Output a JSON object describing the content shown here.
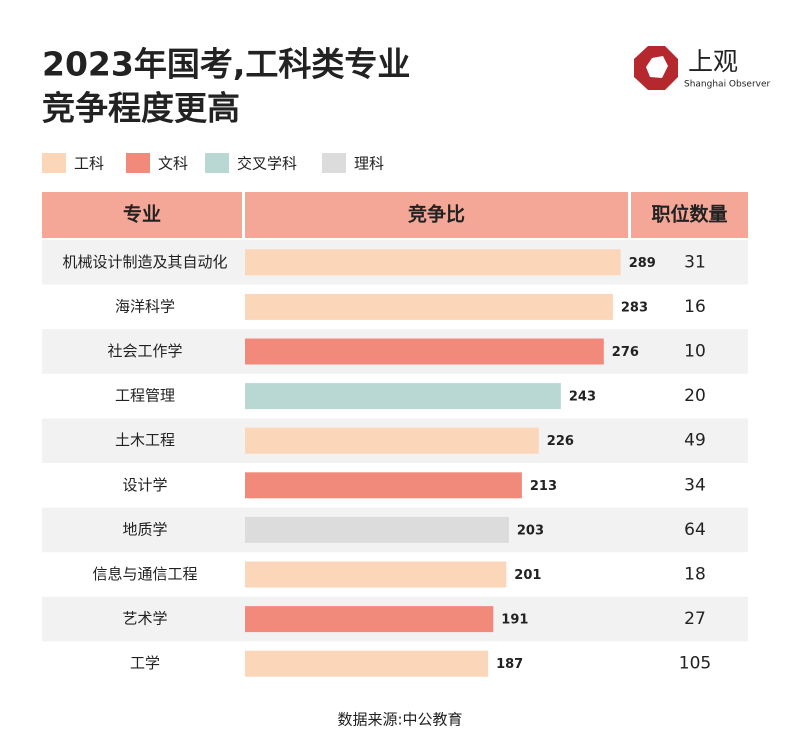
{
  "chart_data": {
    "type": "bar",
    "title": [
      "2023年国考,工科类专业",
      "竞争程度更高"
    ],
    "logo": {
      "name": "上观",
      "subtitle": "Shanghai Observer"
    },
    "legend": [
      {
        "name": "工科",
        "color": "#fcd6b8"
      },
      {
        "name": "文科",
        "color": "#f28a7c"
      },
      {
        "name": "交叉学科",
        "color": "#b9d8d4"
      },
      {
        "name": "理科",
        "color": "#dcdcdc"
      }
    ],
    "columns": [
      "专业",
      "竞争比",
      "职位数量"
    ],
    "categories": [
      "机械设计制造及其自动化",
      "海洋科学",
      "社会工作学",
      "工程管理",
      "土木工程",
      "设计学",
      "地质学",
      "信息与通信工程",
      "艺术学",
      "工学"
    ],
    "values": [
      289,
      283,
      276,
      243,
      226,
      213,
      203,
      201,
      191,
      187
    ],
    "colors": [
      "#fcd6b8",
      "#fcd6b8",
      "#f28a7c",
      "#b9d8d4",
      "#fcd6b8",
      "#f28a7c",
      "#dcdcdc",
      "#fcd6b8",
      "#f28a7c",
      "#fcd6b8"
    ],
    "positions": [
      31,
      16,
      10,
      20,
      49,
      34,
      64,
      18,
      27,
      105
    ],
    "source": "数据来源:中公教育"
  }
}
